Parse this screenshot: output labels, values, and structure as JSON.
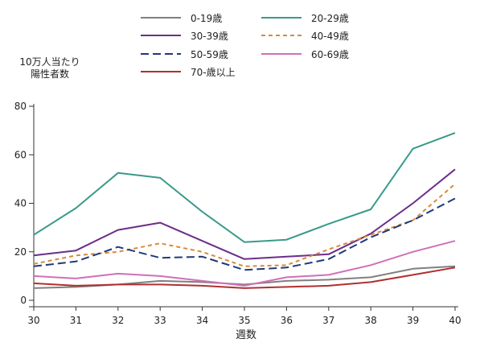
{
  "chart_data": {
    "type": "line",
    "title": "",
    "xlabel": "週数",
    "ylabel": "10万人当たり\n陽性者数",
    "x": [
      30,
      31,
      32,
      33,
      34,
      35,
      36,
      37,
      38,
      39,
      40
    ],
    "xlim": [
      30,
      40
    ],
    "ylim": [
      0,
      80
    ],
    "yticks": [
      0,
      20,
      40,
      60,
      80
    ],
    "grid": false,
    "legend_position": "top",
    "series": [
      {
        "name": "0-19歳",
        "color": "#808080",
        "dash": "solid",
        "values": [
          5,
          5.5,
          6.5,
          8,
          7.5,
          6.5,
          8,
          8.5,
          9.5,
          13,
          14
        ]
      },
      {
        "name": "20-29歳",
        "color": "#3a9a8a",
        "dash": "solid",
        "values": [
          27,
          38,
          52.5,
          50.5,
          36.5,
          24,
          25,
          31.5,
          37.5,
          62.5,
          69
        ]
      },
      {
        "name": "30-39歳",
        "color": "#6b2e8a",
        "dash": "solid",
        "values": [
          18.5,
          20.5,
          29,
          32,
          24.5,
          17,
          18,
          19,
          27.5,
          40,
          54
        ]
      },
      {
        "name": "40-49歳",
        "color": "#d98a3a",
        "dash": "short",
        "values": [
          15,
          18.5,
          20,
          23.5,
          20,
          14,
          14.5,
          21,
          27,
          33,
          48
        ]
      },
      {
        "name": "50-59歳",
        "color": "#1f3a7a",
        "dash": "long",
        "values": [
          14,
          16,
          22,
          17.5,
          18,
          12.5,
          13.5,
          17,
          26,
          33,
          42
        ]
      },
      {
        "name": "60-69歳",
        "color": "#d070b8",
        "dash": "solid",
        "values": [
          10,
          9,
          11,
          10,
          8,
          6,
          9.5,
          10.5,
          14.5,
          20,
          24.5
        ]
      },
      {
        "name": "70-歳以上",
        "color": "#b03030",
        "dash": "solid",
        "values": [
          7,
          6,
          6.5,
          6.5,
          6,
          5,
          5.5,
          6,
          7.5,
          10.5,
          13.5
        ]
      }
    ]
  }
}
